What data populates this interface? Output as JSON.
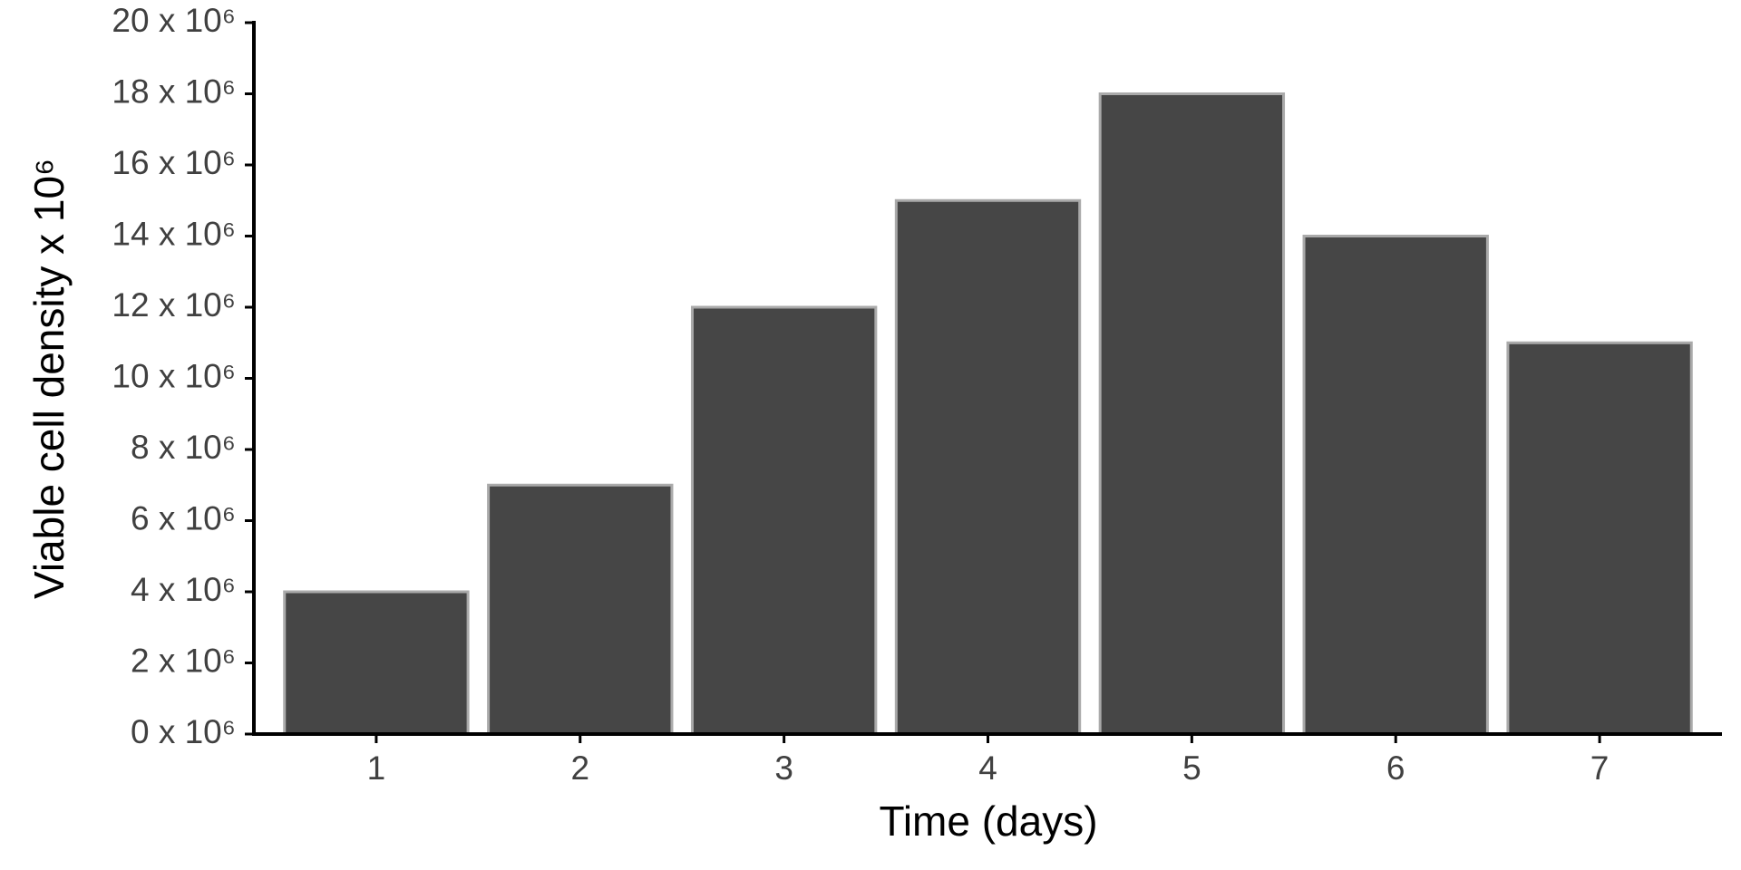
{
  "chart_data": {
    "type": "bar",
    "x_label": "Time (days)",
    "y_label": "Viable cell density x 10⁶",
    "categories": [
      "1",
      "2",
      "3",
      "4",
      "5",
      "6",
      "7"
    ],
    "values": [
      4000000,
      7000000,
      12000000,
      15000000,
      18000000,
      14000000,
      11000000
    ],
    "color": "#464646",
    "ylim": [
      0,
      20000000
    ],
    "yticks": [
      {
        "value": 0,
        "label": "0 x 10⁶"
      },
      {
        "value": 2000000,
        "label": "2 x 10⁶"
      },
      {
        "value": 4000000,
        "label": "4 x 10⁶"
      },
      {
        "value": 6000000,
        "label": "6 x 10⁶"
      },
      {
        "value": 8000000,
        "label": "8 x 10⁶"
      },
      {
        "value": 10000000,
        "label": "10 x 10⁶"
      },
      {
        "value": 12000000,
        "label": "12 x 10⁶"
      },
      {
        "value": 14000000,
        "label": "14 x 10⁶"
      },
      {
        "value": 16000000,
        "label": "16 x 10⁶"
      },
      {
        "value": 18000000,
        "label": "18 x 10⁶"
      },
      {
        "value": 20000000,
        "label": "20 x 10⁶"
      }
    ],
    "grid": false
  }
}
